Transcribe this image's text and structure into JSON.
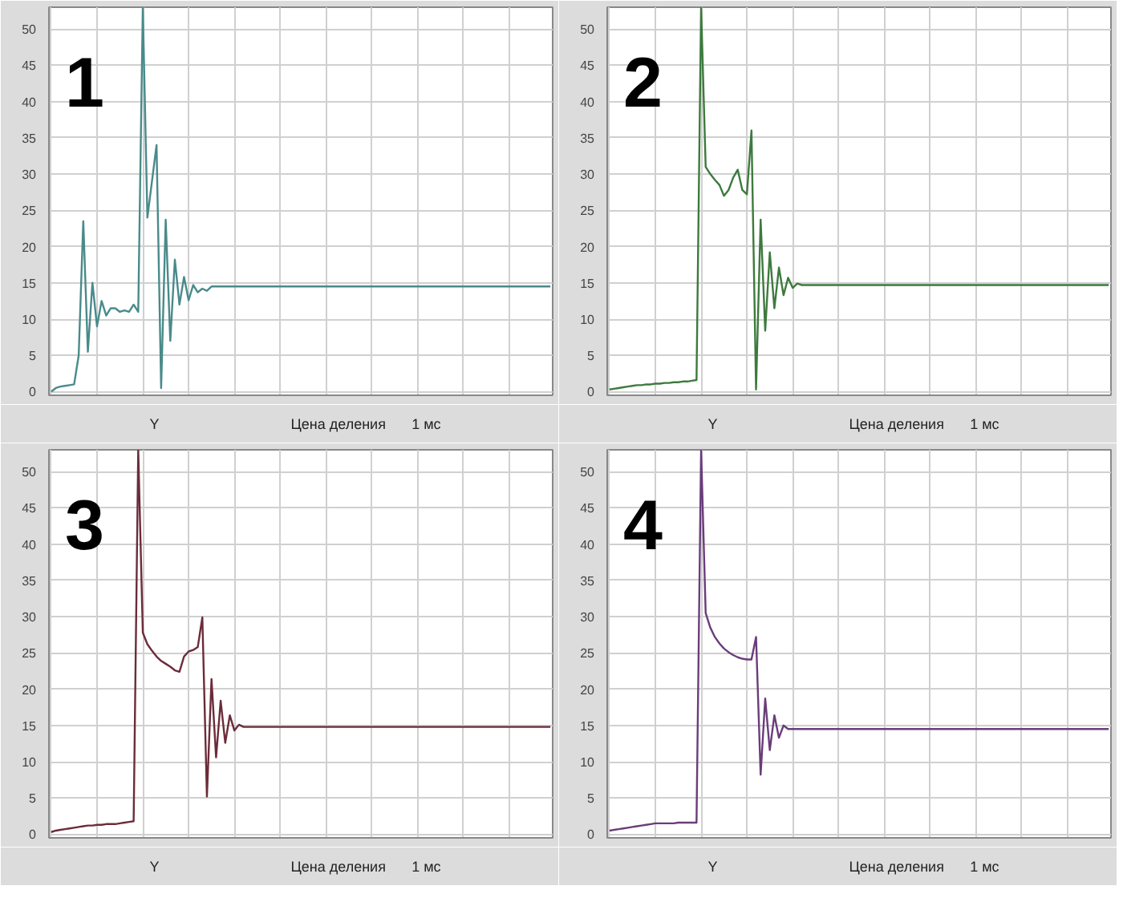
{
  "chart_data": [
    {
      "type": "line",
      "title": "1",
      "color": "#4a8a8a",
      "grid": true,
      "tick_labels": "y",
      "ylim": [
        -0.5,
        53
      ],
      "yticks": [
        0,
        5,
        10,
        15,
        20,
        25,
        30,
        35,
        40,
        45,
        50
      ],
      "categories": [
        null,
        null,
        null,
        null,
        null,
        null,
        null,
        null,
        null,
        null,
        null,
        null,
        null,
        null,
        null,
        null,
        null,
        null,
        null,
        null,
        null,
        null,
        null,
        null,
        null,
        null,
        null,
        null,
        null,
        null,
        null,
        null,
        null,
        null,
        null,
        null,
        null,
        null,
        null,
        null,
        null,
        null,
        null,
        null,
        null,
        null,
        null,
        null,
        null,
        null,
        null,
        null,
        null,
        null,
        null,
        null,
        null,
        null,
        null,
        null,
        null,
        null,
        null,
        null,
        null,
        null,
        null,
        null,
        null,
        null,
        null,
        null,
        null,
        null,
        null,
        null,
        null,
        null,
        null,
        null,
        null,
        null,
        null,
        null,
        null,
        null,
        null,
        null,
        null,
        null,
        null,
        null,
        null,
        null,
        null,
        null,
        null,
        null,
        null,
        null,
        null,
        null,
        null,
        null,
        null,
        null,
        null,
        null,
        null,
        null
      ],
      "values": [
        0,
        0.5,
        0.7,
        0.8,
        0.9,
        1.0,
        5,
        23.5,
        5.5,
        15,
        9,
        12.5,
        10.5,
        11.5,
        11.5,
        11,
        11.2,
        11,
        12,
        11,
        53,
        24,
        29,
        34,
        0.5,
        23.7,
        7,
        18.2,
        12,
        15.8,
        12.6,
        14.7,
        13.7,
        14.2,
        13.9,
        14.5,
        14.5,
        14.5,
        14.5,
        14.5,
        14.5,
        14.5,
        14.5,
        14.5,
        14.5,
        14.5,
        14.5,
        14.5,
        14.5,
        14.5,
        14.5,
        14.5,
        14.5,
        14.5,
        14.5,
        14.5,
        14.5,
        14.5,
        14.5,
        14.5,
        14.5,
        14.5,
        14.5,
        14.5,
        14.5,
        14.5,
        14.5,
        14.5,
        14.5,
        14.5,
        14.5,
        14.5,
        14.5,
        14.5,
        14.5,
        14.5,
        14.5,
        14.5,
        14.5,
        14.5,
        14.5,
        14.5,
        14.5,
        14.5,
        14.5,
        14.5,
        14.5,
        14.5,
        14.5,
        14.5,
        14.5,
        14.5,
        14.5,
        14.5,
        14.5,
        14.5,
        14.5,
        14.5,
        14.5,
        14.5,
        14.5,
        14.5,
        14.5,
        14.5,
        14.5,
        14.5,
        14.5,
        14.5,
        14.5,
        14.5
      ],
      "annotations": [
        "Y",
        "Цена деления",
        "1 мс"
      ]
    },
    {
      "type": "line",
      "title": "2",
      "color": "#3d7a3d",
      "grid": true,
      "tick_labels": "y",
      "ylim": [
        -0.5,
        53
      ],
      "yticks": [
        0,
        5,
        10,
        15,
        20,
        25,
        30,
        35,
        40,
        45,
        50
      ],
      "categories": [
        null,
        null,
        null,
        null,
        null,
        null,
        null,
        null,
        null,
        null,
        null,
        null,
        null,
        null,
        null,
        null,
        null,
        null,
        null,
        null,
        null,
        null,
        null,
        null,
        null,
        null,
        null,
        null,
        null,
        null,
        null,
        null,
        null,
        null,
        null,
        null,
        null,
        null,
        null,
        null,
        null,
        null,
        null,
        null,
        null,
        null,
        null,
        null,
        null,
        null,
        null,
        null,
        null,
        null,
        null,
        null,
        null,
        null,
        null,
        null,
        null,
        null,
        null,
        null,
        null,
        null,
        null,
        null,
        null,
        null,
        null,
        null,
        null,
        null,
        null,
        null,
        null,
        null,
        null,
        null,
        null,
        null,
        null,
        null,
        null,
        null,
        null,
        null,
        null,
        null,
        null,
        null,
        null,
        null,
        null,
        null,
        null,
        null,
        null,
        null,
        null,
        null,
        null,
        null,
        null,
        null,
        null,
        null,
        null,
        null
      ],
      "values": [
        0.3,
        0.4,
        0.5,
        0.6,
        0.7,
        0.8,
        0.9,
        0.9,
        1.0,
        1.0,
        1.1,
        1.1,
        1.2,
        1.2,
        1.3,
        1.3,
        1.4,
        1.4,
        1.5,
        1.6,
        53,
        31,
        30,
        29.2,
        28.5,
        27,
        27.8,
        29.5,
        30.6,
        27.8,
        27.2,
        36,
        0.3,
        23.7,
        8.4,
        19.2,
        11.5,
        17.1,
        13.3,
        15.7,
        14.3,
        14.9,
        14.7,
        14.7,
        14.7,
        14.7,
        14.7,
        14.7,
        14.7,
        14.7,
        14.7,
        14.7,
        14.7,
        14.7,
        14.7,
        14.7,
        14.7,
        14.7,
        14.7,
        14.7,
        14.7,
        14.7,
        14.7,
        14.7,
        14.7,
        14.7,
        14.7,
        14.7,
        14.7,
        14.7,
        14.7,
        14.7,
        14.7,
        14.7,
        14.7,
        14.7,
        14.7,
        14.7,
        14.7,
        14.7,
        14.7,
        14.7,
        14.7,
        14.7,
        14.7,
        14.7,
        14.7,
        14.7,
        14.7,
        14.7,
        14.7,
        14.7,
        14.7,
        14.7,
        14.7,
        14.7,
        14.7,
        14.7,
        14.7,
        14.7,
        14.7,
        14.7,
        14.7,
        14.7,
        14.7,
        14.7,
        14.7,
        14.7,
        14.7,
        14.7
      ],
      "annotations": [
        "Y",
        "Цена деления",
        "1 мс"
      ]
    },
    {
      "type": "line",
      "title": "3",
      "color": "#6b2c3a",
      "grid": true,
      "tick_labels": "y",
      "ylim": [
        -0.5,
        53
      ],
      "yticks": [
        0,
        5,
        10,
        15,
        20,
        25,
        30,
        35,
        40,
        45,
        50
      ],
      "categories": [
        null,
        null,
        null,
        null,
        null,
        null,
        null,
        null,
        null,
        null,
        null,
        null,
        null,
        null,
        null,
        null,
        null,
        null,
        null,
        null,
        null,
        null,
        null,
        null,
        null,
        null,
        null,
        null,
        null,
        null,
        null,
        null,
        null,
        null,
        null,
        null,
        null,
        null,
        null,
        null,
        null,
        null,
        null,
        null,
        null,
        null,
        null,
        null,
        null,
        null,
        null,
        null,
        null,
        null,
        null,
        null,
        null,
        null,
        null,
        null,
        null,
        null,
        null,
        null,
        null,
        null,
        null,
        null,
        null,
        null,
        null,
        null,
        null,
        null,
        null,
        null,
        null,
        null,
        null,
        null,
        null,
        null,
        null,
        null,
        null,
        null,
        null,
        null,
        null,
        null,
        null,
        null,
        null,
        null,
        null,
        null,
        null,
        null,
        null,
        null,
        null,
        null,
        null,
        null,
        null,
        null,
        null,
        null,
        null,
        null
      ],
      "values": [
        0.3,
        0.5,
        0.6,
        0.7,
        0.8,
        0.9,
        1.0,
        1.1,
        1.2,
        1.2,
        1.3,
        1.3,
        1.4,
        1.4,
        1.4,
        1.5,
        1.6,
        1.7,
        1.8,
        53,
        27.8,
        26.2,
        25.3,
        24.5,
        23.9,
        23.5,
        23.1,
        22.6,
        22.4,
        24.5,
        25.2,
        25.4,
        25.8,
        29.9,
        5.2,
        21.4,
        10.6,
        18.4,
        12.6,
        16.4,
        14.3,
        15.1,
        14.8,
        14.8,
        14.8,
        14.8,
        14.8,
        14.8,
        14.8,
        14.8,
        14.8,
        14.8,
        14.8,
        14.8,
        14.8,
        14.8,
        14.8,
        14.8,
        14.8,
        14.8,
        14.8,
        14.8,
        14.8,
        14.8,
        14.8,
        14.8,
        14.8,
        14.8,
        14.8,
        14.8,
        14.8,
        14.8,
        14.8,
        14.8,
        14.8,
        14.8,
        14.8,
        14.8,
        14.8,
        14.8,
        14.8,
        14.8,
        14.8,
        14.8,
        14.8,
        14.8,
        14.8,
        14.8,
        14.8,
        14.8,
        14.8,
        14.8,
        14.8,
        14.8,
        14.8,
        14.8,
        14.8,
        14.8,
        14.8,
        14.8,
        14.8,
        14.8,
        14.8,
        14.8,
        14.8,
        14.8,
        14.8,
        14.8,
        14.8,
        14.8
      ],
      "annotations": [
        "Y",
        "Цена деления",
        "1 мс"
      ]
    },
    {
      "type": "line",
      "title": "4",
      "color": "#6a3d7a",
      "grid": true,
      "tick_labels": "y",
      "ylim": [
        -0.5,
        53
      ],
      "yticks": [
        0,
        5,
        10,
        15,
        20,
        25,
        30,
        35,
        40,
        45,
        50
      ],
      "categories": [
        null,
        null,
        null,
        null,
        null,
        null,
        null,
        null,
        null,
        null,
        null,
        null,
        null,
        null,
        null,
        null,
        null,
        null,
        null,
        null,
        null,
        null,
        null,
        null,
        null,
        null,
        null,
        null,
        null,
        null,
        null,
        null,
        null,
        null,
        null,
        null,
        null,
        null,
        null,
        null,
        null,
        null,
        null,
        null,
        null,
        null,
        null,
        null,
        null,
        null,
        null,
        null,
        null,
        null,
        null,
        null,
        null,
        null,
        null,
        null,
        null,
        null,
        null,
        null,
        null,
        null,
        null,
        null,
        null,
        null,
        null,
        null,
        null,
        null,
        null,
        null,
        null,
        null,
        null,
        null,
        null,
        null,
        null,
        null,
        null,
        null,
        null,
        null,
        null,
        null,
        null,
        null,
        null,
        null,
        null,
        null,
        null,
        null,
        null,
        null,
        null,
        null,
        null,
        null,
        null,
        null,
        null,
        null,
        null,
        null
      ],
      "values": [
        0.5,
        0.6,
        0.7,
        0.8,
        0.9,
        1.0,
        1.1,
        1.2,
        1.3,
        1.4,
        1.5,
        1.5,
        1.5,
        1.5,
        1.5,
        1.6,
        1.6,
        1.6,
        1.6,
        1.6,
        53,
        30.5,
        28.5,
        27.2,
        26.3,
        25.6,
        25.1,
        24.7,
        24.4,
        24.2,
        24.1,
        24.1,
        27.2,
        8.2,
        18.7,
        11.6,
        16.4,
        13.3,
        15,
        14.5,
        14.5,
        14.5,
        14.5,
        14.5,
        14.5,
        14.5,
        14.5,
        14.5,
        14.5,
        14.5,
        14.5,
        14.5,
        14.5,
        14.5,
        14.5,
        14.5,
        14.5,
        14.5,
        14.5,
        14.5,
        14.5,
        14.5,
        14.5,
        14.5,
        14.5,
        14.5,
        14.5,
        14.5,
        14.5,
        14.5,
        14.5,
        14.5,
        14.5,
        14.5,
        14.5,
        14.5,
        14.5,
        14.5,
        14.5,
        14.5,
        14.5,
        14.5,
        14.5,
        14.5,
        14.5,
        14.5,
        14.5,
        14.5,
        14.5,
        14.5,
        14.5,
        14.5,
        14.5,
        14.5,
        14.5,
        14.5,
        14.5,
        14.5,
        14.5,
        14.5,
        14.5,
        14.5,
        14.5,
        14.5,
        14.5,
        14.5,
        14.5,
        14.5,
        14.5,
        14.5
      ],
      "annotations": [
        "Y",
        "Цена деления",
        "1 мс"
      ]
    }
  ]
}
